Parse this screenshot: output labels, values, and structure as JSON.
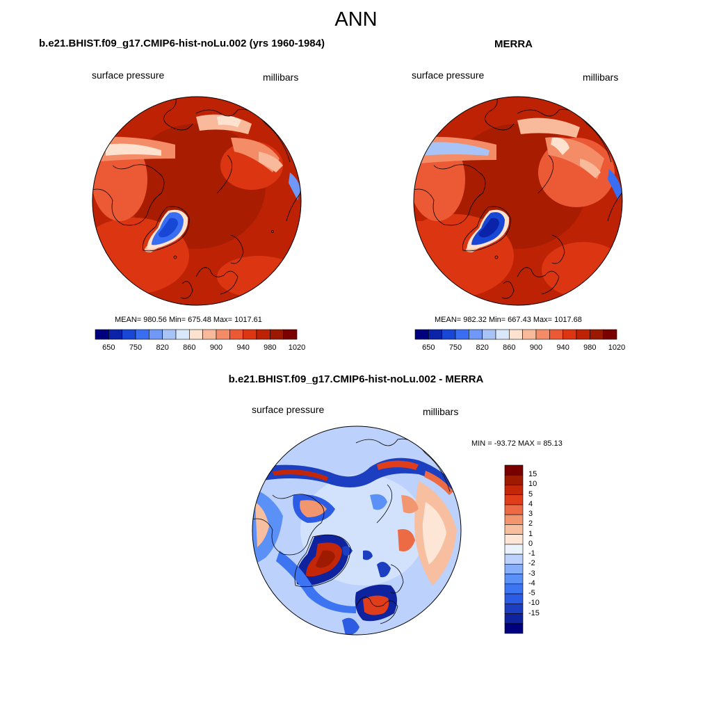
{
  "main_title": "ANN",
  "colors": {
    "abs_scale": [
      "#00007f",
      "#0a23a8",
      "#1747d4",
      "#3a6ef2",
      "#6f98f7",
      "#a8c4f7",
      "#d9e7fa",
      "#fde2d0",
      "#f9b99b",
      "#f48c68",
      "#ec5a35",
      "#dc3512",
      "#bd2205",
      "#9a1900",
      "#7a0000"
    ],
    "diff_scale": [
      "#00007f",
      "#0f239f",
      "#1b3fc0",
      "#2c5ce4",
      "#3c74f2",
      "#5b90f7",
      "#87aff9",
      "#bcd1fb",
      "#eaf2fd",
      "#fde6d6",
      "#f7bf9f",
      "#f29670",
      "#ec6a44",
      "#e03e1a",
      "#c42708",
      "#9e1a00",
      "#7a0000"
    ],
    "land_outline": "#000000"
  },
  "panels": [
    {
      "title": "b.e21.BHIST.f09_g17.CMIP6-hist-noLu.002 (yrs 1960-1984)",
      "variable": "surface pressure",
      "units": "millibars",
      "stats": "MEAN= 980.56  Min= 675.48  Max= 1017.61",
      "colorbar_ticks": [
        "650",
        "750",
        "820",
        "860",
        "900",
        "940",
        "980",
        "1020"
      ]
    },
    {
      "title": "MERRA",
      "variable": "surface pressure",
      "units": "millibars",
      "stats": "MEAN= 982.32  Min= 667.43  Max= 1017.68",
      "colorbar_ticks": [
        "650",
        "750",
        "820",
        "860",
        "900",
        "940",
        "980",
        "1020"
      ]
    },
    {
      "title": "b.e21.BHIST.f09_g17.CMIP6-hist-noLu.002 - MERRA",
      "variable": "surface pressure",
      "units": "millibars",
      "stats": "MIN = -93.72 MAX =  85.13",
      "colorbar_ticks": [
        "15",
        "10",
        "5",
        "4",
        "3",
        "2",
        "1",
        "0",
        "-1",
        "-2",
        "-3",
        "-4",
        "-5",
        "-10",
        "-15"
      ]
    }
  ]
}
